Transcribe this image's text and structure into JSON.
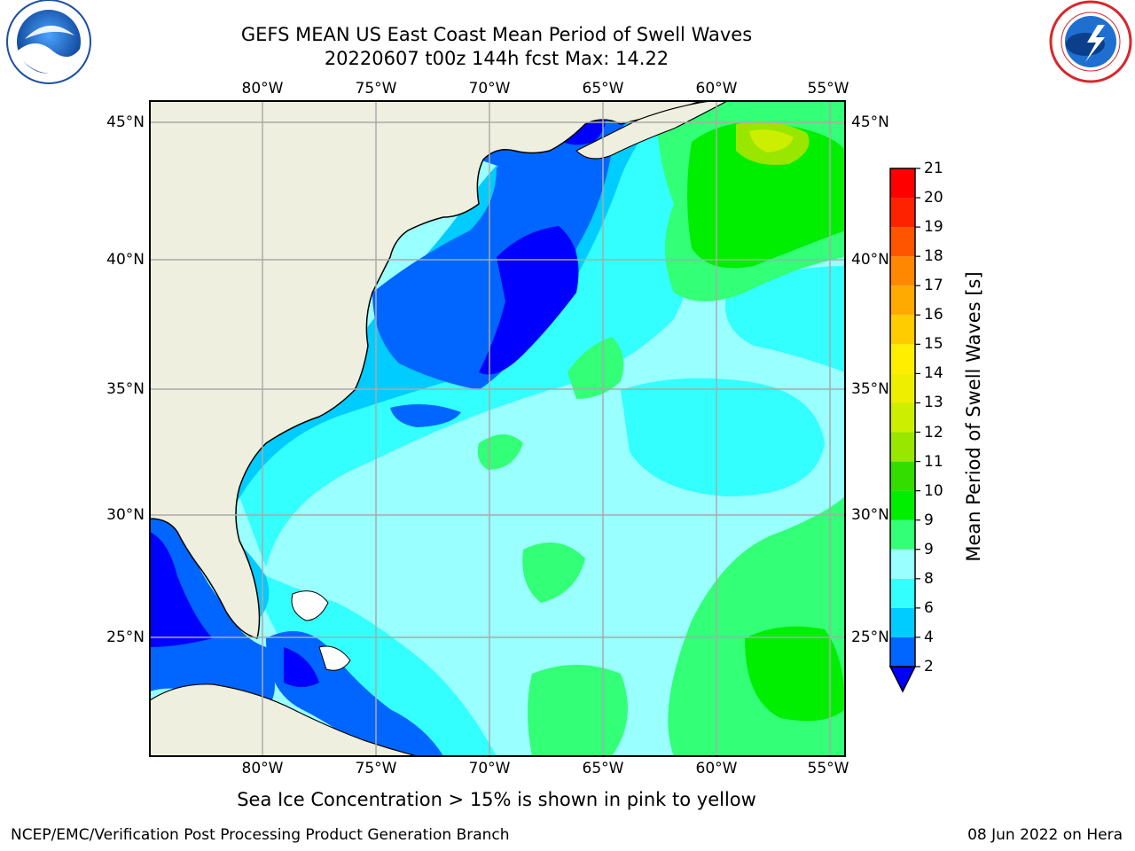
{
  "title_line1": "GEFS MEAN US East Coast Mean Period of Swell Waves",
  "title_line2": "20220607 t00z 144h fcst   Max: 14.22",
  "lon_labels": [
    "80°W",
    "75°W",
    "70°W",
    "65°W",
    "60°W",
    "55°W"
  ],
  "lat_labels": [
    "45°N",
    "40°N",
    "35°N",
    "30°N",
    "25°N"
  ],
  "colorbar": {
    "label": "Mean Period of Swell Waves [s]",
    "ticks": [
      "2",
      "4",
      "6",
      "8",
      "9",
      "9",
      "10",
      "11",
      "12",
      "13",
      "14",
      "15",
      "16",
      "17",
      "18",
      "19",
      "20",
      "21"
    ],
    "colors": [
      "#0066ff",
      "#00ccff",
      "#33ffff",
      "#99ffff",
      "#33ff77",
      "#00ee00",
      "#33dd00",
      "#99e600",
      "#ccee00",
      "#eeee00",
      "#ffee00",
      "#ffcc00",
      "#ffaa00",
      "#ff8800",
      "#ff5500",
      "#ff2200",
      "#ff0000"
    ],
    "extend_color": "#0000ff"
  },
  "note": "Sea Ice Concentration > 15% is shown in pink to yellow",
  "credit": "NCEP/EMC/Verification Post Processing Product Generation Branch",
  "datestamp": "08 Jun 2022 on Hera",
  "logos": {
    "left": "NOAA",
    "right": "NATIONAL WEATHER SERVICE"
  }
}
